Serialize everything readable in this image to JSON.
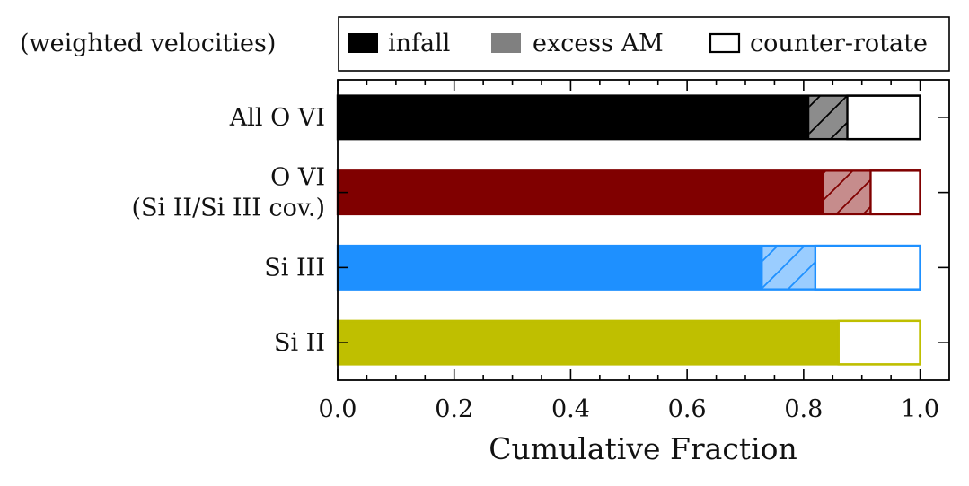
{
  "chart_data": {
    "type": "bar",
    "orientation": "horizontal",
    "stacked": true,
    "title": "(weighted velocities)",
    "xlabel": "Cumulative Fraction",
    "ylabel": "",
    "xlim": [
      0.0,
      1.05
    ],
    "xticks": [
      0.0,
      0.2,
      0.4,
      0.6,
      0.8,
      1.0
    ],
    "xtick_labels": [
      "0.0",
      "0.2",
      "0.4",
      "0.6",
      "0.8",
      "1.0"
    ],
    "categories": [
      {
        "id": "all-ovi",
        "lines": [
          "All O VI"
        ],
        "color": "#000000"
      },
      {
        "id": "ovi-cov",
        "lines": [
          "O VI",
          "(Si II/Si III cov.)"
        ],
        "color": "#800000"
      },
      {
        "id": "siiii",
        "lines": [
          "Si III"
        ],
        "color": "#1e90ff"
      },
      {
        "id": "sii",
        "lines": [
          "Si II"
        ],
        "color": "#bfbf00"
      }
    ],
    "series": [
      {
        "name": "infall",
        "style": "solid",
        "values": [
          0.81,
          0.835,
          0.73,
          0.86
        ]
      },
      {
        "name": "excess AM",
        "style": "hatched",
        "values": [
          0.065,
          0.08,
          0.09,
          0.0
        ]
      },
      {
        "name": "counter-rotate",
        "style": "open",
        "values": [
          0.125,
          0.085,
          0.18,
          0.14
        ]
      }
    ],
    "legend": {
      "placement": "top",
      "entries": [
        {
          "label": "infall",
          "swatch": "filled",
          "color": "#000000"
        },
        {
          "label": "excess AM",
          "swatch": "gray",
          "color": "#808080"
        },
        {
          "label": "counter-rotate",
          "swatch": "open",
          "color": "#000000"
        }
      ]
    }
  }
}
